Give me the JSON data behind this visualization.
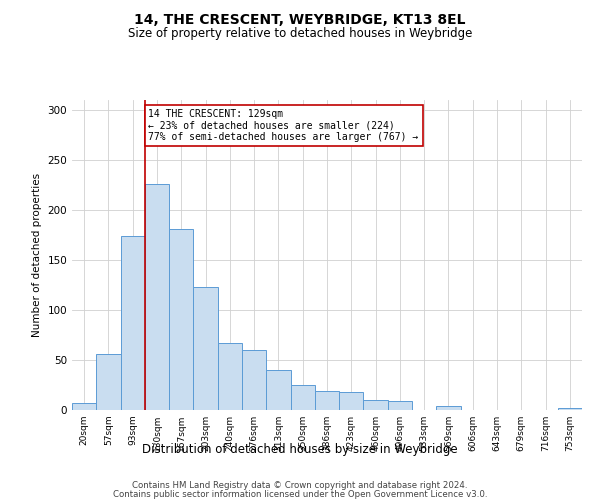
{
  "title": "14, THE CRESCENT, WEYBRIDGE, KT13 8EL",
  "subtitle": "Size of property relative to detached houses in Weybridge",
  "xlabel": "Distribution of detached houses by size in Weybridge",
  "ylabel": "Number of detached properties",
  "bin_labels": [
    "20sqm",
    "57sqm",
    "93sqm",
    "130sqm",
    "167sqm",
    "203sqm",
    "240sqm",
    "276sqm",
    "313sqm",
    "350sqm",
    "386sqm",
    "423sqm",
    "460sqm",
    "496sqm",
    "533sqm",
    "569sqm",
    "606sqm",
    "643sqm",
    "679sqm",
    "716sqm",
    "753sqm"
  ],
  "bar_values": [
    7,
    56,
    174,
    226,
    181,
    123,
    67,
    60,
    40,
    25,
    19,
    18,
    10,
    9,
    0,
    4,
    0,
    0,
    0,
    0,
    2
  ],
  "bar_color": "#c9ddf0",
  "bar_edge_color": "#5b9bd5",
  "vline_x": 3,
  "vline_color": "#c00000",
  "annotation_title": "14 THE CRESCENT: 129sqm",
  "annotation_line1": "← 23% of detached houses are smaller (224)",
  "annotation_line2": "77% of semi-detached houses are larger (767) →",
  "annotation_box_color": "#ffffff",
  "annotation_box_edge": "#c00000",
  "ylim": [
    0,
    310
  ],
  "footer1": "Contains HM Land Registry data © Crown copyright and database right 2024.",
  "footer2": "Contains public sector information licensed under the Open Government Licence v3.0."
}
